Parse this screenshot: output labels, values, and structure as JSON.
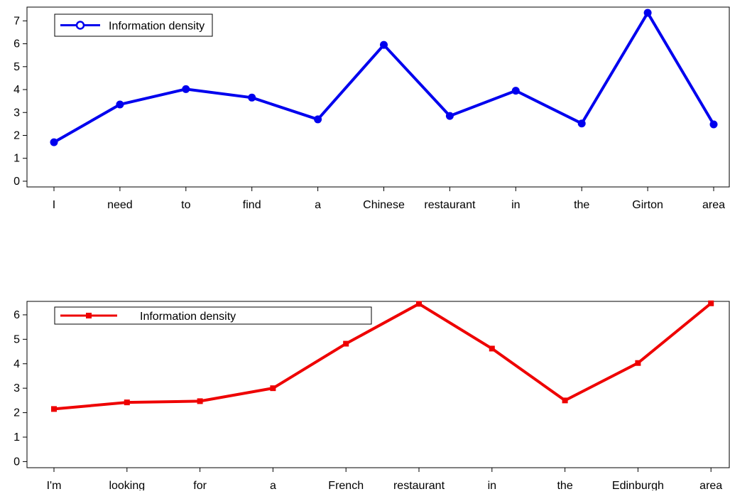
{
  "chart_data": [
    {
      "type": "line",
      "categories": [
        "I",
        "need",
        "to",
        "find",
        "a",
        "Chinese",
        "restaurant",
        "in",
        "the",
        "Girton",
        "area"
      ],
      "series": [
        {
          "name": "Information density",
          "values": [
            1.7,
            3.35,
            4.02,
            3.65,
            2.7,
            5.95,
            2.85,
            3.95,
            2.52,
            7.35,
            2.48
          ],
          "color": "#0000ee",
          "marker": "circle"
        }
      ],
      "yticks": [
        0,
        1,
        2,
        3,
        4,
        5,
        6,
        7
      ],
      "ylim": [
        -0.25,
        7.6
      ],
      "legend_position": "top-left",
      "grid": false
    },
    {
      "type": "line",
      "categories": [
        "I'm",
        "looking",
        "for",
        "a",
        "French",
        "restaurant",
        "in",
        "the",
        "Edinburgh",
        "area"
      ],
      "series": [
        {
          "name": "Information density",
          "values": [
            2.15,
            2.42,
            2.47,
            3.0,
            4.82,
            6.45,
            4.62,
            2.5,
            4.03,
            6.47
          ],
          "color": "#ee0000",
          "marker": "square"
        }
      ],
      "yticks": [
        0,
        1,
        2,
        3,
        4,
        5,
        6
      ],
      "ylim": [
        -0.25,
        6.55
      ],
      "legend_position": "top-left",
      "grid": false
    }
  ]
}
